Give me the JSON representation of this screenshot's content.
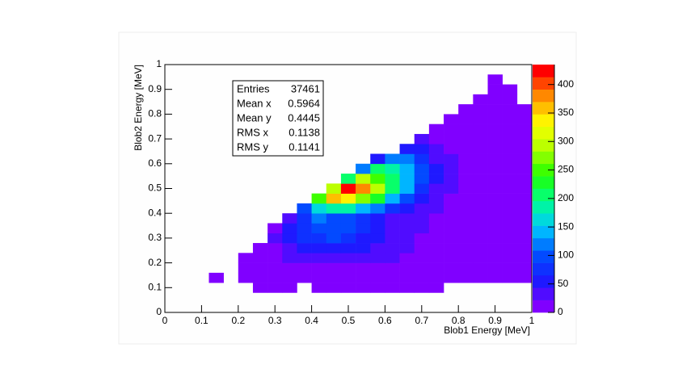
{
  "chart_data": {
    "type": "heatmap",
    "xlabel": "Blob1 Energy [MeV]",
    "ylabel": "Blob2 Energy [MeV]",
    "xlim": [
      0,
      1
    ],
    "ylim": [
      0,
      1
    ],
    "xticks": [
      0,
      0.1,
      0.2,
      0.3,
      0.4,
      0.5,
      0.6,
      0.7,
      0.8,
      0.9,
      1
    ],
    "yticks": [
      0,
      0.1,
      0.2,
      0.3,
      0.4,
      0.5,
      0.6,
      0.7,
      0.8,
      0.9,
      1
    ],
    "zlim": [
      0,
      435
    ],
    "zticks": [
      0,
      50,
      100,
      150,
      200,
      250,
      300,
      350,
      400
    ],
    "palette": [
      "#8000ff",
      "#1a1aff",
      "#0050ff",
      "#00c8ff",
      "#00ff90",
      "#20ff00",
      "#b0ff00",
      "#ffff00",
      "#ff9000",
      "#ff0000"
    ],
    "stats": [
      {
        "label": "Entries",
        "value": 37461
      },
      {
        "label": "Mean x",
        "value": 0.5964
      },
      {
        "label": "Mean y",
        "value": 0.4445
      },
      {
        "label": "RMS x",
        "value": 0.1138
      },
      {
        "label": "RMS y",
        "value": 0.1141
      }
    ],
    "z": [
      [
        0,
        0,
        0,
        0,
        0,
        0,
        0,
        0,
        0,
        0,
        0,
        0,
        0,
        0,
        0,
        0,
        0,
        0,
        0,
        0,
        0,
        0,
        0,
        0,
        0
      ],
      [
        0,
        0,
        0,
        0,
        0,
        0,
        0,
        0,
        0,
        0,
        0,
        0,
        0,
        0,
        0,
        0,
        0,
        0,
        0,
        0,
        0,
        0,
        0,
        0,
        0
      ],
      [
        0,
        0,
        0,
        0,
        0,
        0,
        2,
        1,
        1,
        0,
        2,
        2,
        3,
        2,
        2,
        1,
        2,
        2,
        1,
        0,
        0,
        0,
        0,
        0,
        0
      ],
      [
        0,
        0,
        0,
        1,
        0,
        3,
        4,
        5,
        6,
        6,
        7,
        8,
        8,
        8,
        7,
        6,
        6,
        5,
        5,
        4,
        4,
        3,
        3,
        2,
        2
      ],
      [
        0,
        0,
        0,
        0,
        0,
        5,
        7,
        9,
        11,
        13,
        15,
        17,
        18,
        17,
        15,
        13,
        12,
        10,
        9,
        8,
        7,
        6,
        5,
        4,
        3
      ],
      [
        0,
        0,
        0,
        0,
        0,
        6,
        10,
        15,
        22,
        30,
        38,
        42,
        40,
        35,
        28,
        22,
        18,
        15,
        12,
        10,
        8,
        7,
        6,
        5,
        4
      ],
      [
        0,
        0,
        0,
        0,
        0,
        0,
        12,
        20,
        35,
        50,
        60,
        65,
        60,
        50,
        38,
        28,
        22,
        18,
        14,
        11,
        9,
        8,
        6,
        5,
        4
      ],
      [
        0,
        0,
        0,
        0,
        0,
        0,
        0,
        22,
        45,
        70,
        85,
        90,
        82,
        65,
        45,
        32,
        25,
        20,
        15,
        12,
        10,
        8,
        7,
        5,
        4
      ],
      [
        0,
        0,
        0,
        0,
        0,
        0,
        0,
        18,
        50,
        80,
        95,
        100,
        90,
        70,
        50,
        36,
        28,
        22,
        17,
        13,
        10,
        8,
        7,
        5,
        4
      ],
      [
        0,
        0,
        0,
        0,
        0,
        0,
        0,
        0,
        40,
        85,
        110,
        105,
        95,
        80,
        60,
        42,
        30,
        24,
        18,
        14,
        11,
        9,
        7,
        6,
        4
      ],
      [
        0,
        0,
        0,
        0,
        0,
        0,
        0,
        0,
        0,
        100,
        170,
        190,
        180,
        150,
        110,
        75,
        45,
        30,
        22,
        16,
        12,
        10,
        8,
        6,
        5
      ],
      [
        0,
        0,
        0,
        0,
        0,
        0,
        0,
        0,
        0,
        0,
        250,
        360,
        330,
        280,
        220,
        150,
        90,
        50,
        30,
        20,
        14,
        11,
        9,
        7,
        5
      ],
      [
        0,
        0,
        0,
        0,
        0,
        0,
        0,
        0,
        0,
        0,
        0,
        300,
        430,
        380,
        300,
        200,
        140,
        80,
        40,
        25,
        16,
        12,
        9,
        7,
        5
      ],
      [
        0,
        0,
        0,
        0,
        0,
        0,
        0,
        0,
        0,
        0,
        0,
        0,
        200,
        300,
        260,
        200,
        150,
        90,
        45,
        26,
        17,
        12,
        9,
        7,
        5
      ],
      [
        0,
        0,
        0,
        0,
        0,
        0,
        0,
        0,
        0,
        0,
        0,
        0,
        0,
        120,
        200,
        180,
        150,
        100,
        50,
        25,
        16,
        11,
        8,
        6,
        5
      ],
      [
        0,
        0,
        0,
        0,
        0,
        0,
        0,
        0,
        0,
        0,
        0,
        0,
        0,
        0,
        60,
        110,
        110,
        80,
        40,
        22,
        14,
        10,
        8,
        6,
        4
      ],
      [
        0,
        0,
        0,
        0,
        0,
        0,
        0,
        0,
        0,
        0,
        0,
        0,
        0,
        0,
        0,
        0,
        50,
        50,
        30,
        18,
        12,
        9,
        7,
        5,
        4
      ],
      [
        0,
        0,
        0,
        0,
        0,
        0,
        0,
        0,
        0,
        0,
        0,
        0,
        0,
        0,
        0,
        0,
        0,
        25,
        20,
        14,
        10,
        8,
        6,
        5,
        3
      ],
      [
        0,
        0,
        0,
        0,
        0,
        0,
        0,
        0,
        0,
        0,
        0,
        0,
        0,
        0,
        0,
        0,
        0,
        0,
        12,
        10,
        8,
        6,
        5,
        4,
        3
      ],
      [
        0,
        0,
        0,
        0,
        0,
        0,
        0,
        0,
        0,
        0,
        0,
        0,
        0,
        0,
        0,
        0,
        0,
        0,
        0,
        8,
        6,
        5,
        4,
        3,
        2
      ],
      [
        0,
        0,
        0,
        0,
        0,
        0,
        0,
        0,
        0,
        0,
        0,
        0,
        0,
        0,
        0,
        0,
        0,
        0,
        0,
        0,
        4,
        4,
        3,
        2,
        2
      ],
      [
        0,
        0,
        0,
        0,
        0,
        0,
        0,
        0,
        0,
        0,
        0,
        0,
        0,
        0,
        0,
        0,
        0,
        0,
        0,
        0,
        0,
        3,
        2,
        2,
        0
      ],
      [
        0,
        0,
        0,
        0,
        0,
        0,
        0,
        0,
        0,
        0,
        0,
        0,
        0,
        0,
        0,
        0,
        0,
        0,
        0,
        0,
        0,
        0,
        2,
        1,
        0
      ],
      [
        0,
        0,
        0,
        0,
        0,
        0,
        0,
        0,
        0,
        0,
        0,
        0,
        0,
        0,
        0,
        0,
        0,
        0,
        0,
        0,
        0,
        0,
        1,
        0,
        0
      ],
      [
        0,
        0,
        0,
        0,
        0,
        0,
        0,
        0,
        0,
        0,
        0,
        0,
        0,
        0,
        0,
        0,
        0,
        0,
        0,
        0,
        0,
        0,
        0,
        0,
        0
      ]
    ]
  }
}
